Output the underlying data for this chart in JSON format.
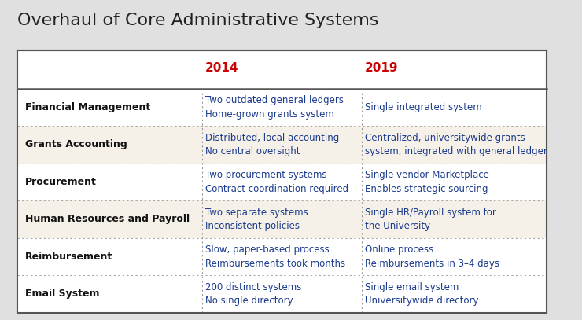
{
  "title": "Overhaul of Core Administrative Systems",
  "title_fontsize": 16,
  "title_color": "#222222",
  "background_color": "#e0e0e0",
  "header_2014": "2014",
  "header_2019": "2019",
  "header_color": "#cc0000",
  "header_fontsize": 11,
  "row_label_color": "#111111",
  "row_label_fontsize": 9,
  "cell_text_color": "#1a3a8c",
  "cell_fontsize": 8.5,
  "col_divider_color": "#999999",
  "row_divider_color": "#aaaaaa",
  "outer_border_color": "#555555",
  "rows": [
    {
      "label": "Financial Management",
      "col2014": "Two outdated general ledgers\nHome-grown grants system",
      "col2019": "Single integrated system",
      "bg": "#ffffff"
    },
    {
      "label": "Grants Accounting",
      "col2014": "Distributed, local accounting\nNo central oversight",
      "col2019": "Centralized, universitywide grants\nsystem, integrated with general ledger",
      "bg": "#f5f0e8"
    },
    {
      "label": "Procurement",
      "col2014": "Two procurement systems\nContract coordination required",
      "col2019": "Single vendor Marketplace\nEnables strategic sourcing",
      "bg": "#ffffff"
    },
    {
      "label": "Human Resources and Payroll",
      "col2014": "Two separate systems\nInconsistent policies",
      "col2019": "Single HR/Payroll system for\nthe University",
      "bg": "#f5f0e8"
    },
    {
      "label": "Reimbursement",
      "col2014": "Slow, paper-based process\nReimbursements took months",
      "col2019": "Online process\nReimbursements in 3–4 days",
      "bg": "#ffffff"
    },
    {
      "label": "Email System",
      "col2014": "200 distinct systems\nNo single directory",
      "col2019": "Single email system\nUniversitywide directory",
      "bg": "#ffffff"
    }
  ],
  "figsize": [
    7.4,
    4.07
  ],
  "dpi": 100
}
